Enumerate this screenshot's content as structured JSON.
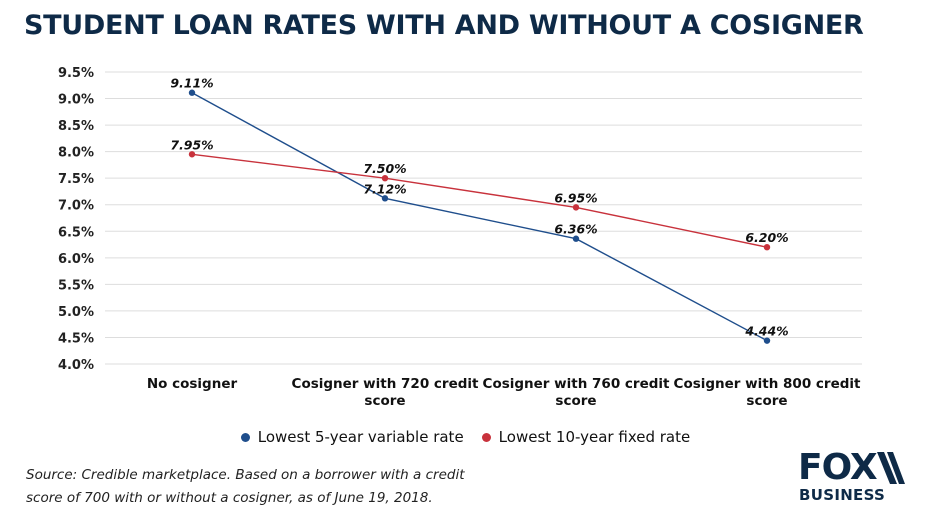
{
  "title": "STUDENT LOAN RATES WITH AND WITHOUT A COSIGNER",
  "chart_data": {
    "type": "line",
    "title": "STUDENT LOAN RATES WITH AND WITHOUT A COSIGNER",
    "categories": [
      [
        "No cosigner"
      ],
      [
        "Cosigner with 720 credit",
        "score"
      ],
      [
        "Cosigner with 760 credit",
        "score"
      ],
      [
        "Cosigner with 800 credit",
        "score"
      ]
    ],
    "yticks": [
      "4.0%",
      "4.5%",
      "5.0%",
      "5.5%",
      "6.0%",
      "6.5%",
      "7.0%",
      "7.5%",
      "8.0%",
      "8.5%",
      "9.0%",
      "9.5%"
    ],
    "ylim": [
      4.0,
      9.5
    ],
    "grid": true,
    "series": [
      {
        "name": "Lowest 5-year variable rate",
        "color": "#1f4e8c",
        "values": [
          9.11,
          7.12,
          6.36,
          4.44
        ],
        "labels": [
          "9.11%",
          "7.12%",
          "6.36%",
          "4.44%"
        ]
      },
      {
        "name": "Lowest 10-year fixed rate",
        "color": "#c8323c",
        "values": [
          7.95,
          7.5,
          6.95,
          6.2
        ],
        "labels": [
          "7.95%",
          "7.50%",
          "6.95%",
          "6.20%"
        ]
      }
    ],
    "legend_position": "bottom"
  },
  "source": {
    "line1": "Source: Credible marketplace. Based on a borrower with a credit",
    "line2": "score of 700 with or without a cosigner, as of June 19, 2018."
  },
  "logo": {
    "word": "FOX",
    "sub": "BUSINESS"
  }
}
